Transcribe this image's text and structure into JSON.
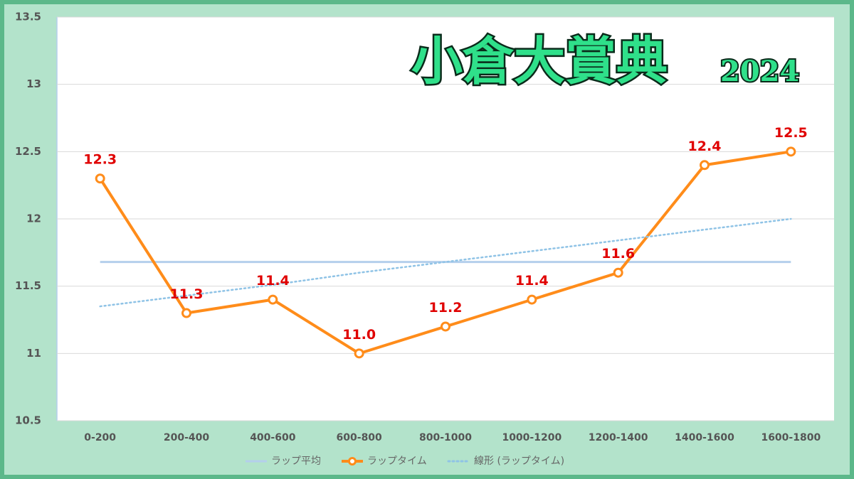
{
  "chart_data": {
    "type": "line",
    "title": "小倉大賞典",
    "subtitle": "2024",
    "categories": [
      "0-200",
      "200-400",
      "400-600",
      "600-800",
      "800-1000",
      "1000-1200",
      "1200-1400",
      "1400-1600",
      "1600-1800"
    ],
    "series": [
      {
        "name": "ラップ平均",
        "color": "#b4cfec",
        "style": "solid",
        "values": [
          11.68,
          11.68,
          11.68,
          11.68,
          11.68,
          11.68,
          11.68,
          11.68,
          11.68
        ]
      },
      {
        "name": "ラップタイム",
        "color": "#ff8c1a",
        "style": "marker",
        "values": [
          12.3,
          11.3,
          11.4,
          11.0,
          11.2,
          11.4,
          11.6,
          12.4,
          12.5
        ],
        "value_labels": [
          "12.3",
          "11.3",
          "11.4",
          "11.0",
          "11.2",
          "11.4",
          "11.6",
          "12.4",
          "12.5"
        ]
      },
      {
        "name": "線形 (ラップタイム)",
        "color": "#8fc3e6",
        "style": "dotted",
        "values": [
          11.35,
          11.43,
          11.51,
          11.6,
          11.68,
          11.76,
          11.84,
          11.92,
          12.0
        ]
      }
    ],
    "ylim": [
      10.5,
      13.5
    ],
    "yticks": [
      10.5,
      11,
      11.5,
      12,
      12.5,
      13,
      13.5
    ],
    "grid": true,
    "legend": "bottom"
  }
}
